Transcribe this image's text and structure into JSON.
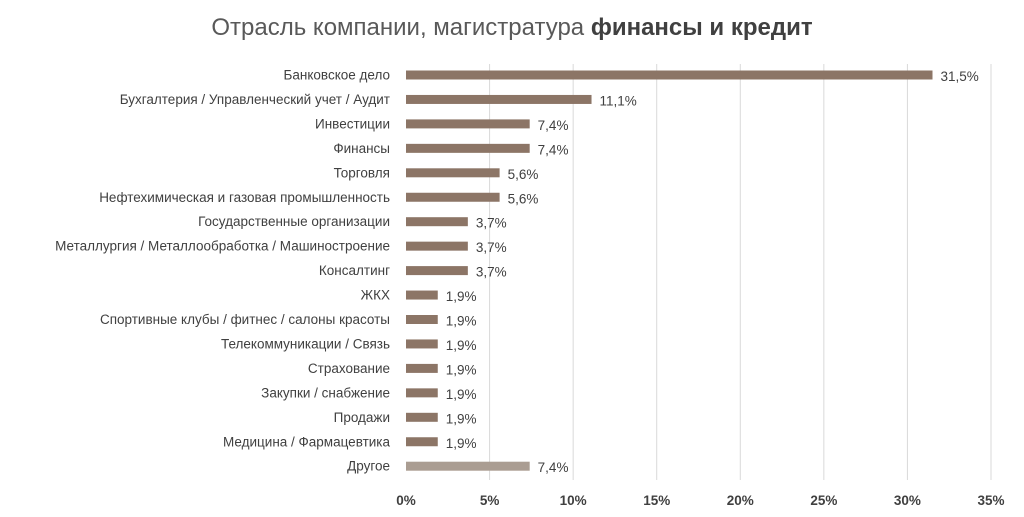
{
  "chart_data": {
    "type": "bar",
    "orientation": "horizontal",
    "title": "Отрасль компании, магистратура финансы и кредит",
    "title_parts": [
      {
        "text": "Отрасль компании, магистратура ",
        "bold": false
      },
      {
        "text": "финансы и кредит",
        "bold": true
      }
    ],
    "categories": [
      "Банковское дело",
      "Бухгалтерия / Управленческий учет / Аудит",
      "Инвестиции",
      "Финансы",
      "Торговля",
      "Нефтехимическая и газовая промышленность",
      "Государственные организации",
      "Металлургия / Металлообработка / Машиностроение",
      "Консалтинг",
      "ЖКХ",
      "Спортивные клубы / фитнес / салоны красоты",
      "Телекоммуникации  /  Связь",
      "Страхование",
      "Закупки / снабжение",
      "Продажи",
      "Медицина / Фармацевтика",
      "Другое"
    ],
    "values": [
      31.5,
      11.1,
      7.4,
      7.4,
      5.6,
      5.6,
      3.7,
      3.7,
      3.7,
      1.9,
      1.9,
      1.9,
      1.9,
      1.9,
      1.9,
      1.9,
      7.4
    ],
    "value_labels": [
      "31,5%",
      "11,1%",
      "7,4%",
      "7,4%",
      "5,6%",
      "5,6%",
      "3,7%",
      "3,7%",
      "3,7%",
      "1,9%",
      "1,9%",
      "1,9%",
      "1,9%",
      "1,9%",
      "1,9%",
      "1,9%",
      "7,4%"
    ],
    "xlim": [
      0,
      35
    ],
    "x_ticks": [
      0,
      5,
      10,
      15,
      20,
      25,
      30,
      35
    ],
    "x_tick_labels": [
      "0%",
      "5%",
      "10%",
      "15%",
      "20%",
      "25%",
      "30%",
      "35%"
    ],
    "grid": true,
    "legend": "none",
    "colors": {
      "bar": "#8c7566",
      "bar_other": "#aa9d92",
      "grid": "#d9d9d9",
      "text": "#404040",
      "title": "#595959"
    }
  }
}
